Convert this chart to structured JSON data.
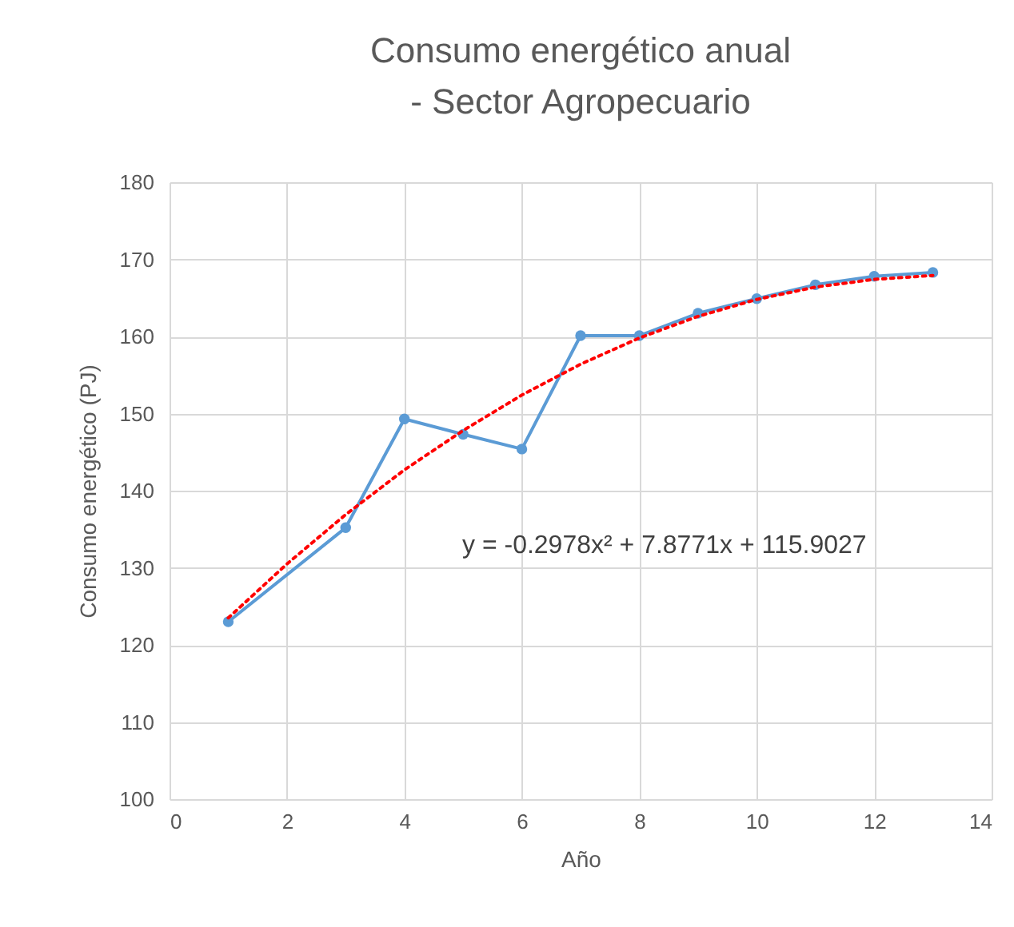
{
  "chart_data": {
    "type": "line",
    "title": "Consumo energético anual - Sector Agropecuario",
    "xlabel": "Año",
    "ylabel": "Consumo energético (PJ)",
    "xlim": [
      0,
      14
    ],
    "xticks": [
      0,
      2,
      4,
      6,
      8,
      10,
      12,
      14
    ],
    "ylim": [
      100,
      180
    ],
    "yticks": [
      100,
      110,
      120,
      130,
      140,
      150,
      160,
      170,
      180
    ],
    "grid": true,
    "series": [
      {
        "color": "#5b9bd5",
        "marker": "circle",
        "line_style": "solid",
        "x": [
          1,
          3,
          4,
          5,
          6,
          7,
          8,
          9,
          10,
          11,
          12,
          13
        ],
        "values": [
          123.0,
          135.2,
          149.3,
          147.3,
          145.4,
          160.1,
          160.1,
          163.0,
          164.9,
          166.7,
          167.8,
          168.3
        ]
      },
      {
        "color": "#ff0000",
        "marker": "none",
        "line_style": "dotted",
        "x": [
          1,
          2,
          3,
          4,
          5,
          6,
          7,
          8,
          9,
          10,
          11,
          12,
          13
        ],
        "values": [
          123.5,
          130.5,
          136.9,
          142.7,
          147.8,
          152.4,
          156.4,
          159.8,
          162.6,
          164.8,
          166.4,
          167.4,
          167.9
        ]
      }
    ],
    "annotations": [
      "y = -0.2978x² + 7.8771x + 115.9027"
    ]
  }
}
